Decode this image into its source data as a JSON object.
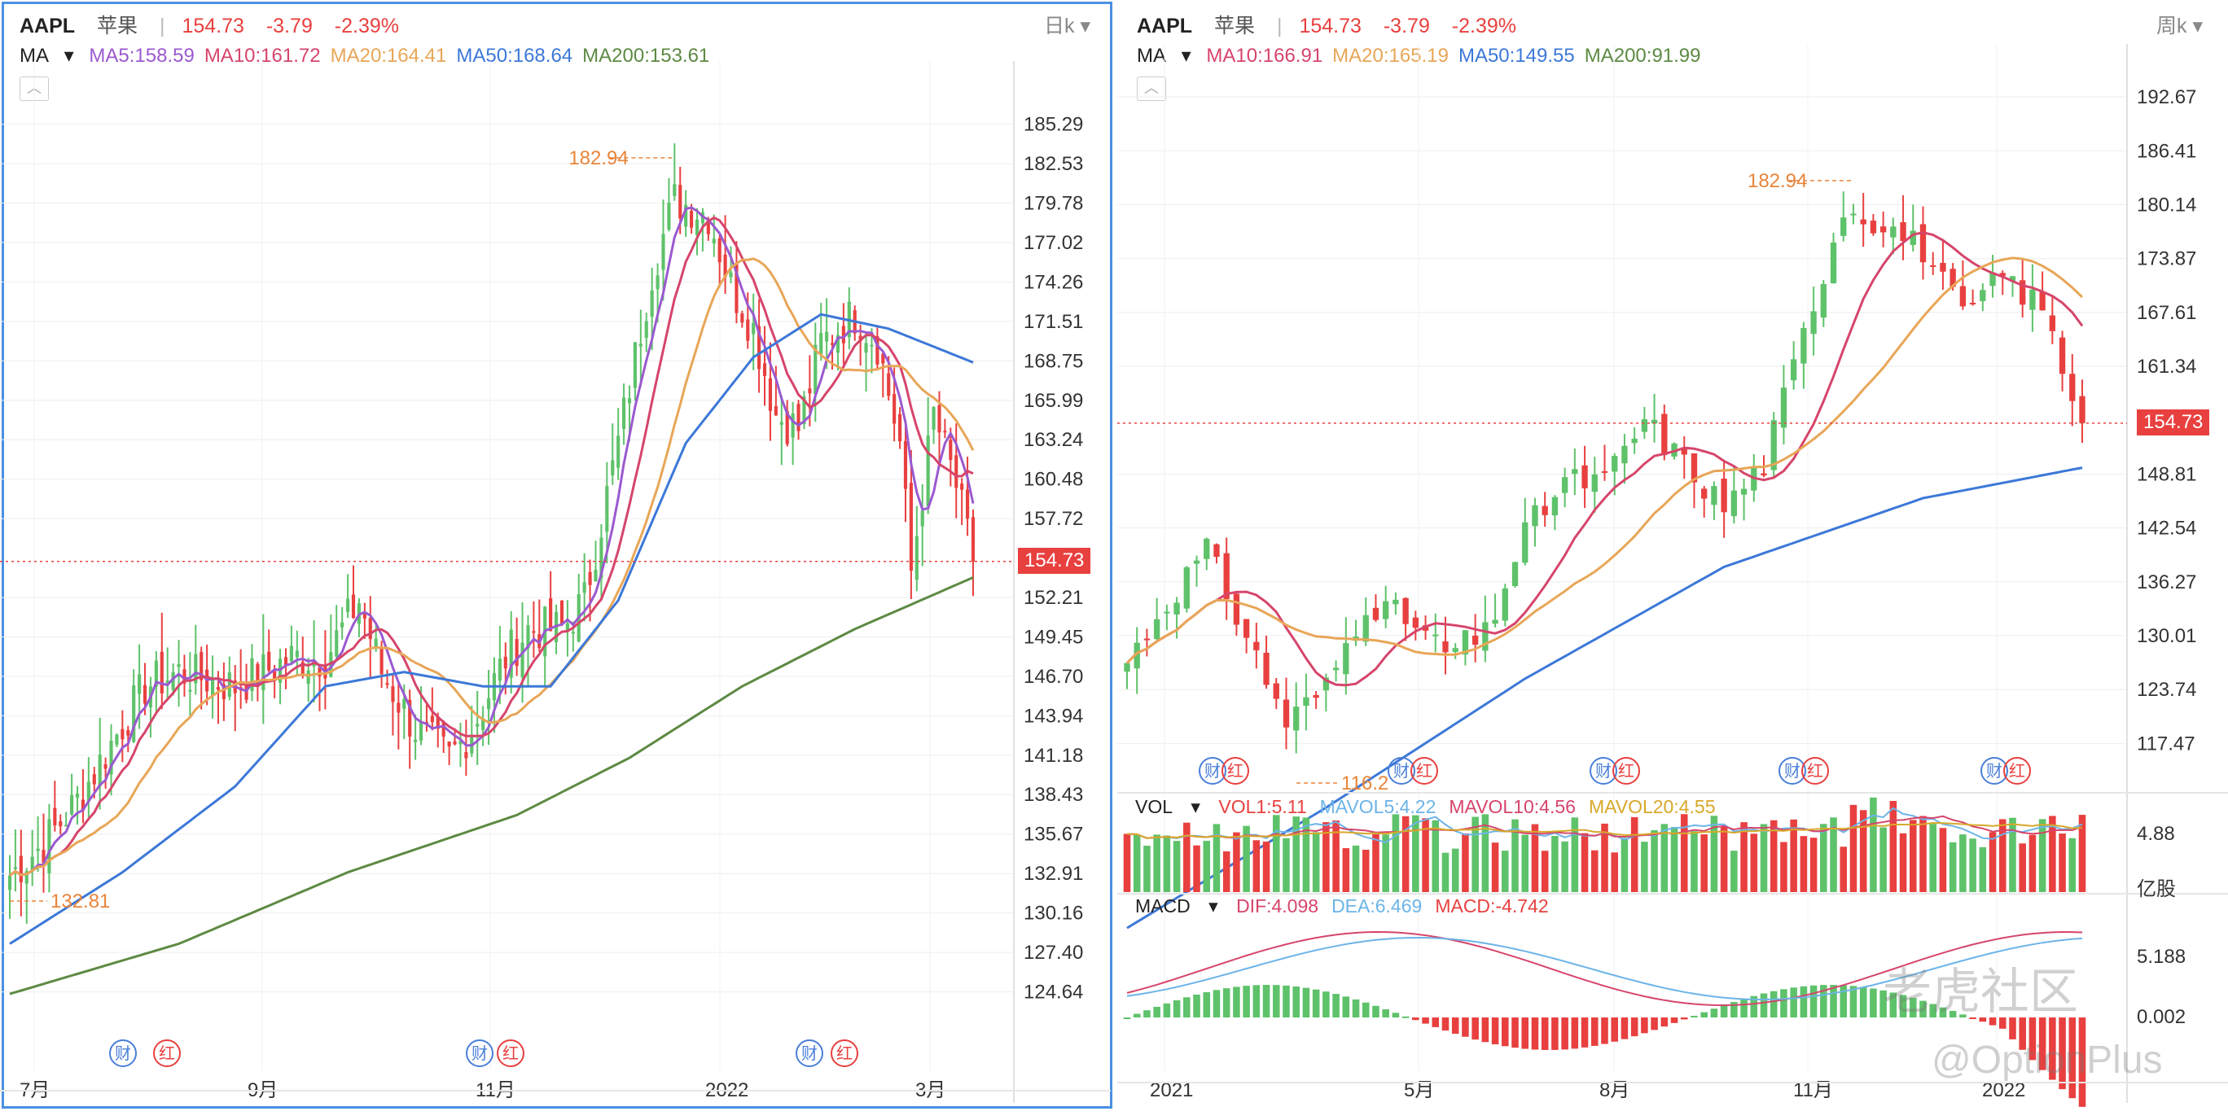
{
  "left": {
    "header": {
      "symbol": "AAPL",
      "name": "苹果",
      "price": "154.73",
      "change": "-3.79",
      "pct": "-2.39%"
    },
    "period": "日k",
    "ma_label": "MA",
    "ma_items": [
      {
        "label": "MA5:158.59",
        "color": "#9b59d0"
      },
      {
        "label": "MA10:161.72",
        "color": "#d6456b"
      },
      {
        "label": "MA20:164.41",
        "color": "#e8a657"
      },
      {
        "label": "MA50:168.64",
        "color": "#3c78d8"
      },
      {
        "label": "MA200:153.61",
        "color": "#5d8a43"
      }
    ],
    "price_badge": "154.73",
    "max_label": "182.94",
    "min_label": "132.81",
    "tags": [
      "财",
      "红",
      "财",
      "红",
      "财",
      "红"
    ]
  },
  "right": {
    "header": {
      "symbol": "AAPL",
      "name": "苹果",
      "price": "154.73",
      "change": "-3.79",
      "pct": "-2.39%"
    },
    "period": "周k",
    "ma_label": "MA",
    "ma_items": [
      {
        "label": "MA10:166.91",
        "color": "#d6456b"
      },
      {
        "label": "MA20:165.19",
        "color": "#e8a657"
      },
      {
        "label": "MA50:149.55",
        "color": "#3c78d8"
      },
      {
        "label": "MA200:91.99",
        "color": "#5d8a43"
      }
    ],
    "price_badge": "154.73",
    "max_label": "182.94",
    "min_label": "116.2",
    "vol_label": "VOL",
    "vol_items": [
      {
        "label": "VOL1:5.11",
        "color": "#e8403f"
      },
      {
        "label": "MAVOL5:4.22",
        "color": "#6cb4e8"
      },
      {
        "label": "MAVOL10:4.56",
        "color": "#d6456b"
      },
      {
        "label": "MAVOL20:4.55",
        "color": "#d8a82a"
      }
    ],
    "vol_unit": "亿股",
    "macd_label": "MACD",
    "macd_items": [
      {
        "label": "DIF:4.098",
        "color": "#d6456b"
      },
      {
        "label": "DEA:6.469",
        "color": "#6cb4e8"
      },
      {
        "label": "MACD:-4.742",
        "color": "#e8403f"
      }
    ],
    "watermark1": "老虎社区",
    "watermark2": "@OptionPlus",
    "tags": [
      "财",
      "红",
      "财",
      "红",
      "财",
      "红",
      "财",
      "红",
      "财",
      "红"
    ]
  },
  "chart_data": [
    {
      "type": "candlestick",
      "title": "AAPL 日k",
      "y_ticks": [
        185.29,
        182.53,
        179.78,
        177.02,
        174.26,
        171.51,
        168.75,
        165.99,
        163.24,
        160.48,
        157.72,
        152.21,
        149.45,
        146.7,
        143.94,
        141.18,
        138.43,
        135.67,
        132.91,
        130.16,
        127.4,
        124.64
      ],
      "ylim": [
        122.0,
        188.0
      ],
      "x_ticks": [
        "7月",
        "9月",
        "11月",
        "2022",
        "3月"
      ],
      "last_close": 154.73,
      "period_high": 182.94,
      "period_low": 132.81,
      "series": [
        {
          "name": "close",
          "points": [
            [
              0,
              132.8
            ],
            [
              6,
              135
            ],
            [
              12,
              138
            ],
            [
              18,
              142
            ],
            [
              24,
              146
            ],
            [
              30,
              147
            ],
            [
              40,
              146
            ],
            [
              50,
              148
            ],
            [
              56,
              148
            ],
            [
              62,
              152
            ],
            [
              66,
              147
            ],
            [
              72,
              143
            ],
            [
              78,
              141
            ],
            [
              82,
              143
            ],
            [
              88,
              148
            ],
            [
              92,
              150
            ],
            [
              98,
              150
            ],
            [
              102,
              152
            ],
            [
              108,
              163
            ],
            [
              114,
              175
            ],
            [
              118,
              180
            ],
            [
              124,
              179
            ],
            [
              128,
              174
            ],
            [
              132,
              171
            ],
            [
              136,
              165
            ],
            [
              140,
              164
            ],
            [
              144,
              170
            ],
            [
              150,
              172
            ],
            [
              154,
              170
            ],
            [
              158,
              163
            ],
            [
              160,
              154
            ],
            [
              164,
              165
            ],
            [
              168,
              160
            ],
            [
              171,
              154.73
            ]
          ]
        },
        {
          "name": "MA5",
          "value_last": 158.59
        },
        {
          "name": "MA10",
          "value_last": 161.72
        },
        {
          "name": "MA20",
          "value_last": 164.41
        },
        {
          "name": "MA50",
          "points": [
            [
              0,
              128
            ],
            [
              20,
              133
            ],
            [
              40,
              139
            ],
            [
              56,
              146
            ],
            [
              70,
              147
            ],
            [
              84,
              146
            ],
            [
              96,
              146
            ],
            [
              108,
              152
            ],
            [
              120,
              163
            ],
            [
              132,
              169
            ],
            [
              144,
              172
            ],
            [
              156,
              171
            ],
            [
              171,
              168.64
            ]
          ]
        },
        {
          "name": "MA200",
          "points": [
            [
              0,
              124.5
            ],
            [
              30,
              128
            ],
            [
              60,
              133
            ],
            [
              90,
              137
            ],
            [
              110,
              141
            ],
            [
              130,
              146
            ],
            [
              150,
              150
            ],
            [
              171,
              153.61
            ]
          ]
        }
      ]
    },
    {
      "type": "candlestick",
      "title": "AAPL 周k",
      "y_ticks": [
        192.67,
        186.41,
        180.14,
        173.87,
        167.61,
        161.34,
        148.81,
        142.54,
        136.27,
        130.01,
        123.74,
        117.47
      ],
      "ylim": [
        114.0,
        196.0
      ],
      "x_ticks": [
        "2021",
        "5月",
        "8月",
        "11月",
        "2022"
      ],
      "last_close": 154.73,
      "period_high": 182.94,
      "period_low": 116.2,
      "series": [
        {
          "name": "close",
          "points": [
            [
              0,
              127
            ],
            [
              4,
              134
            ],
            [
              8,
              140
            ],
            [
              12,
              130
            ],
            [
              16,
              120
            ],
            [
              20,
              124
            ],
            [
              24,
              134
            ],
            [
              28,
              132
            ],
            [
              32,
              128
            ],
            [
              36,
              130
            ],
            [
              40,
              142
            ],
            [
              44,
              148
            ],
            [
              48,
              148
            ],
            [
              52,
              155
            ],
            [
              56,
              150
            ],
            [
              60,
              145
            ],
            [
              64,
              150
            ],
            [
              68,
              165
            ],
            [
              72,
              180
            ],
            [
              76,
              178
            ],
            [
              80,
              175
            ],
            [
              84,
              167
            ],
            [
              88,
              172
            ],
            [
              92,
              168
            ],
            [
              96,
              154.73
            ]
          ]
        },
        {
          "name": "MA10",
          "value_last": 166.91
        },
        {
          "name": "MA20",
          "value_last": 165.19
        },
        {
          "name": "MA50",
          "value_last": 149.55
        },
        {
          "name": "MA200",
          "value_last": 91.99
        }
      ],
      "volume": {
        "unit": "亿股",
        "tick": 4.88,
        "last": 5.11
      },
      "macd": {
        "ticks": [
          5.188,
          0.002
        ],
        "DIF": 4.098,
        "DEA": 6.469,
        "MACD": -4.742
      }
    }
  ]
}
